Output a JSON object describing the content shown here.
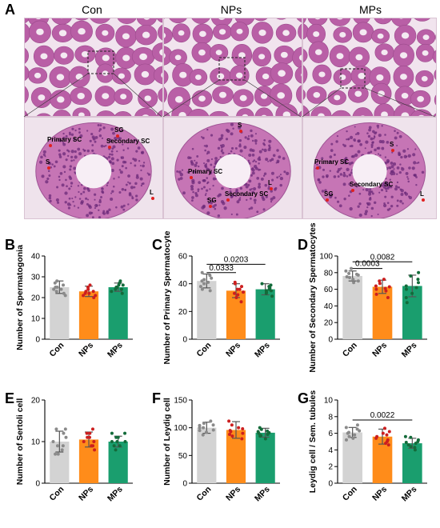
{
  "figure": {
    "panel_a": {
      "letter": "A",
      "column_titles": [
        "Con",
        "NPs",
        "MPs"
      ],
      "annotations": {
        "con": [
          "SG",
          "Primary SC",
          "Secondary SC",
          "S",
          "L"
        ],
        "nps": [
          "S",
          "Primary SC",
          "Secondary SC",
          "SG",
          "L"
        ],
        "mps": [
          "S",
          "Primary SC",
          "Secondary SC",
          "SG",
          "L"
        ]
      }
    }
  },
  "chart_data": [
    {
      "id": "B",
      "letter": "B",
      "type": "bar",
      "categories": [
        "Con",
        "NPs",
        "MPs"
      ],
      "values": [
        25,
        23,
        25
      ],
      "errors": [
        3,
        2.5,
        2
      ],
      "points": [
        [
          21,
          23,
          24,
          25,
          26,
          27,
          28,
          22,
          25,
          24
        ],
        [
          20,
          21,
          22,
          23,
          24,
          25,
          26,
          22,
          23,
          21
        ],
        [
          22,
          23,
          24,
          25,
          26,
          27,
          28,
          24,
          25,
          26
        ]
      ],
      "ylabel": "Number of Spermatogonia",
      "ylim": [
        0,
        40
      ],
      "yticks": [
        0,
        10,
        20,
        30,
        40
      ],
      "colors": [
        "#d3d3d3",
        "#ff8c1a",
        "#1a9e6e"
      ],
      "comparisons": []
    },
    {
      "id": "C",
      "letter": "C",
      "type": "bar",
      "categories": [
        "Con",
        "NPs",
        "MPs"
      ],
      "values": [
        42,
        35,
        36
      ],
      "errors": [
        5,
        5,
        4
      ],
      "points": [
        [
          35,
          38,
          40,
          42,
          44,
          46,
          48,
          41,
          43,
          36
        ],
        [
          27,
          30,
          32,
          34,
          36,
          38,
          40,
          41,
          33,
          36
        ],
        [
          31,
          33,
          35,
          36,
          37,
          38,
          40,
          35,
          34,
          39
        ]
      ],
      "ylabel": "Number of Primary Spermatocyte",
      "ylim": [
        0,
        60
      ],
      "yticks": [
        0,
        20,
        40,
        60
      ],
      "colors": [
        "#d3d3d3",
        "#ff8c1a",
        "#1a9e6e"
      ],
      "comparisons": [
        {
          "from": 0,
          "to": 1,
          "label": "0.0333",
          "y": 48
        },
        {
          "from": 0,
          "to": 2,
          "label": "0.0203",
          "y": 54
        }
      ]
    },
    {
      "id": "D",
      "letter": "D",
      "type": "bar",
      "categories": [
        "Con",
        "NPs",
        "MPs"
      ],
      "values": [
        76,
        63,
        64
      ],
      "errors": [
        6,
        8,
        13
      ],
      "points": [
        [
          68,
          70,
          72,
          75,
          77,
          79,
          82,
          85,
          74,
          78
        ],
        [
          50,
          54,
          58,
          61,
          64,
          67,
          70,
          72,
          63,
          60
        ],
        [
          44,
          50,
          55,
          60,
          64,
          68,
          72,
          76,
          62,
          80
        ]
      ],
      "ylabel": "Number of Secondary Spermatocytes",
      "ylim": [
        0,
        100
      ],
      "yticks": [
        0,
        20,
        40,
        60,
        80,
        100
      ],
      "colors": [
        "#d3d3d3",
        "#ff8c1a",
        "#1a9e6e"
      ],
      "comparisons": [
        {
          "from": 0,
          "to": 1,
          "label": "0.0003",
          "y": 85
        },
        {
          "from": 0,
          "to": 2,
          "label": "0.0082",
          "y": 93
        }
      ]
    },
    {
      "id": "E",
      "letter": "E",
      "type": "bar",
      "categories": [
        "Con",
        "NPs",
        "MPs"
      ],
      "values": [
        10,
        10.5,
        10
      ],
      "errors": [
        2.5,
        1.8,
        1.3
      ],
      "points": [
        [
          7,
          8,
          9,
          10,
          11,
          12,
          13,
          7,
          13,
          9
        ],
        [
          8,
          9,
          10,
          11,
          12,
          13,
          10,
          9,
          11,
          12
        ],
        [
          8,
          9,
          10,
          10,
          11,
          12,
          11,
          9,
          10,
          12
        ]
      ],
      "ylabel": "Number of Sertoli cell",
      "ylim": [
        0,
        20
      ],
      "yticks": [
        0,
        10,
        20
      ],
      "colors": [
        "#d3d3d3",
        "#ff8c1a",
        "#1a9e6e"
      ],
      "comparisons": []
    },
    {
      "id": "F",
      "letter": "F",
      "type": "bar",
      "categories": [
        "Con",
        "NPs",
        "MPs"
      ],
      "values": [
        100,
        96,
        91
      ],
      "errors": [
        10,
        15,
        8
      ],
      "points": [
        [
          87,
          92,
          96,
          100,
          104,
          108,
          112,
          95,
          100,
          105
        ],
        [
          80,
          85,
          90,
          95,
          100,
          105,
          112,
          98,
          93,
          88
        ],
        [
          80,
          85,
          88,
          91,
          94,
          97,
          100,
          90,
          86,
          93
        ]
      ],
      "ylabel": "Number of Leydig cell",
      "ylim": [
        0,
        150
      ],
      "yticks": [
        0,
        50,
        100,
        150
      ],
      "colors": [
        "#d3d3d3",
        "#ff8c1a",
        "#1a9e6e"
      ],
      "comparisons": []
    },
    {
      "id": "G",
      "letter": "G",
      "type": "bar",
      "categories": [
        "Con",
        "NPs",
        "MPs"
      ],
      "values": [
        6.1,
        5.6,
        4.8
      ],
      "errors": [
        0.6,
        0.9,
        0.6
      ],
      "points": [
        [
          5.2,
          5.6,
          6.0,
          6.3,
          6.7,
          7.0,
          5.8,
          6.5,
          6.1,
          5.4
        ],
        [
          4.6,
          5.0,
          5.4,
          5.8,
          6.2,
          6.6,
          5.2,
          5.6,
          4.8,
          6.0
        ],
        [
          4.0,
          4.3,
          4.6,
          4.9,
          5.2,
          5.5,
          4.8,
          5.0,
          4.4,
          5.6
        ]
      ],
      "ylabel": "Leydig cell / Sem. tubules",
      "ylim": [
        0,
        10
      ],
      "yticks": [
        0,
        2,
        4,
        6,
        8,
        10
      ],
      "colors": [
        "#d3d3d3",
        "#ff8c1a",
        "#1a9e6e"
      ],
      "comparisons": [
        {
          "from": 0,
          "to": 2,
          "label": "0.0022",
          "y": 7.6
        }
      ]
    }
  ]
}
